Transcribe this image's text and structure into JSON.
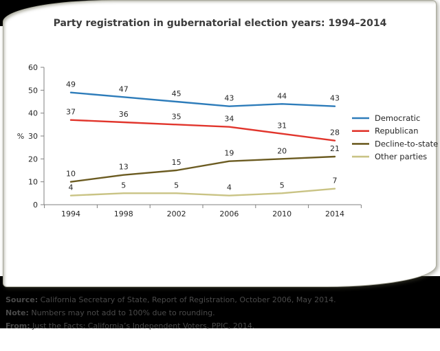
{
  "card": {
    "title": "Party registration in gubernatorial election years: 1994–2014"
  },
  "chart_data": {
    "type": "line",
    "title": "Party registration in gubernatorial election years: 1994–2014",
    "xlabel": "",
    "ylabel": "%",
    "ylim": [
      0,
      60
    ],
    "yticks": [
      0,
      10,
      20,
      30,
      40,
      50,
      60
    ],
    "categories": [
      "1994",
      "1998",
      "2002",
      "2006",
      "2010",
      "2014"
    ],
    "series": [
      {
        "name": "Democratic",
        "color": "#2d7cba",
        "values": [
          49,
          47,
          45,
          43,
          44,
          43
        ]
      },
      {
        "name": "Republican",
        "color": "#e1352c",
        "values": [
          37,
          36,
          35,
          34,
          31,
          28
        ]
      },
      {
        "name": "Decline-to-state",
        "color": "#6b5b21",
        "values": [
          10,
          13,
          15,
          19,
          20,
          21
        ]
      },
      {
        "name": "Other parties",
        "color": "#c9c384",
        "values": [
          4,
          5,
          5,
          4,
          5,
          7
        ]
      }
    ],
    "legend_position": "right",
    "grid": false,
    "point_labels": true,
    "axis_color": "#7f7f7f"
  },
  "footer": {
    "background": "#000000",
    "text_color": "#4a4a4a",
    "lines": [
      {
        "label": "Source:",
        "text": " California Secretary of State, Report of Registration, October 2006, May 2014."
      },
      {
        "label": "Note:",
        "text": " Numbers may not add to 100% due to rounding."
      },
      {
        "label": "From:",
        "text": " Just the Facts: California’s Independent Voters, PPIC, 2014."
      }
    ]
  }
}
